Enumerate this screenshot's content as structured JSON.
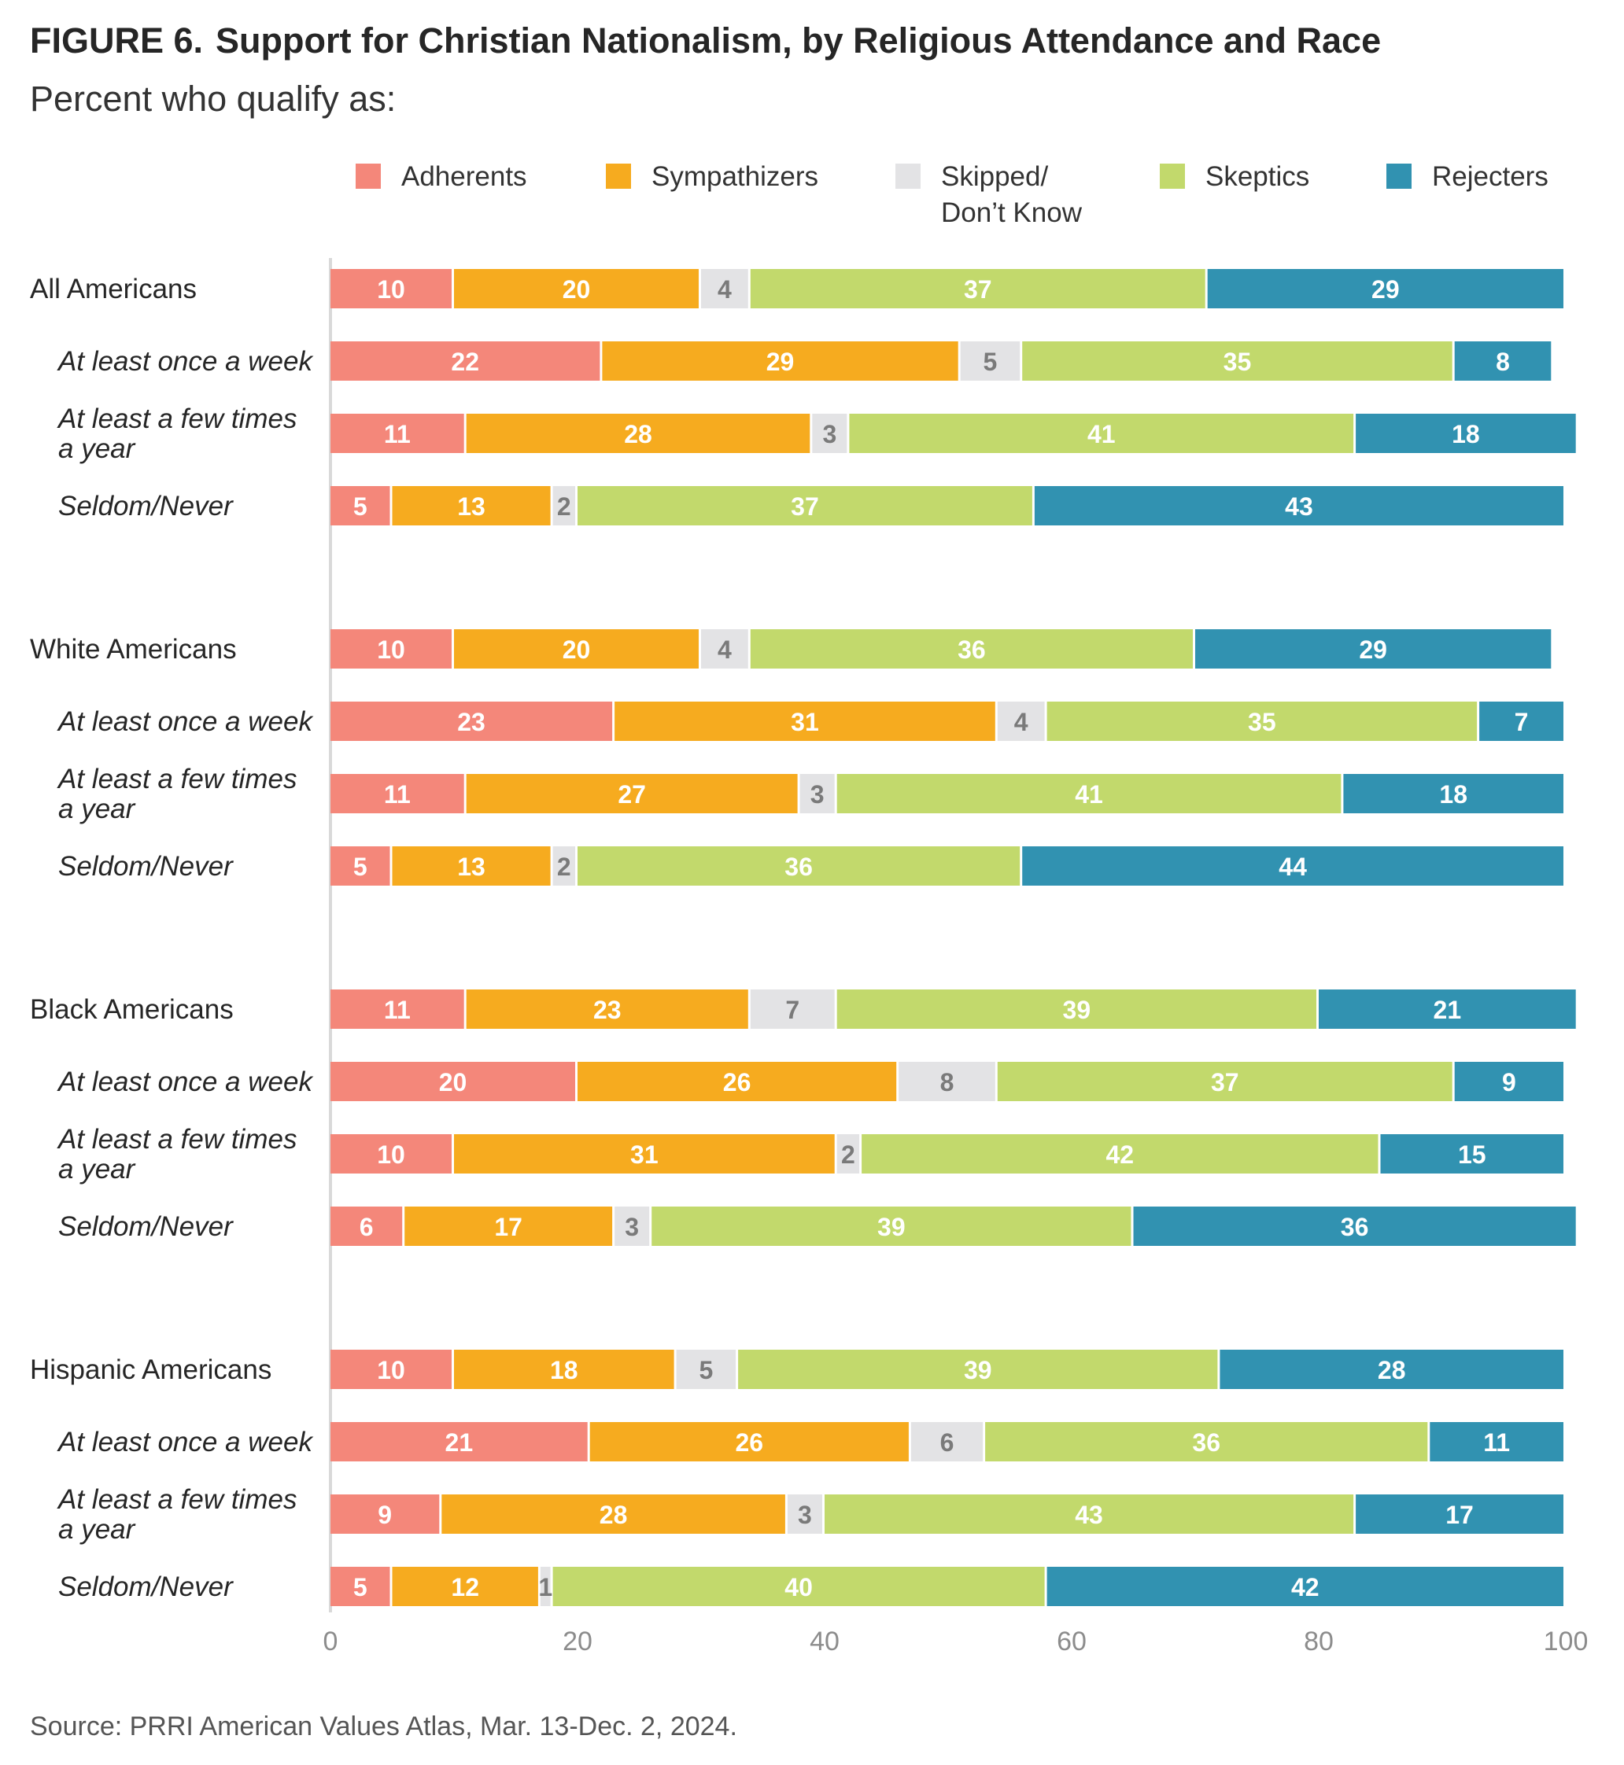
{
  "figure_label": "FIGURE 6.",
  "title": "Support for Christian Nationalism, by Religious Attendance and Race",
  "subtitle": "Percent who qualify as:",
  "source": "Source: PRRI American Values Atlas, Mar. 13-Dec. 2, 2024.",
  "colors": {
    "Adherents": "#f4877a",
    "Sympathizers": "#f6ab1f",
    "Skipped": "#e3e3e5",
    "Skeptics": "#c2d96c",
    "Rejecters": "#3192b1",
    "label_light": "#ffffff",
    "label_dark": "#7a7a7a",
    "axis": "#d9d9d9",
    "tick": "#8c8c8c"
  },
  "chart_data": {
    "type": "bar",
    "orientation": "horizontal",
    "stacked": true,
    "xlim": [
      0,
      100
    ],
    "x_ticks": [
      0,
      20,
      40,
      60,
      80,
      100
    ],
    "legend": {
      "placement": "top",
      "entries": [
        {
          "key": "Adherents",
          "lines": [
            "Adherents"
          ]
        },
        {
          "key": "Sympathizers",
          "lines": [
            "Sympathizers"
          ]
        },
        {
          "key": "Skipped",
          "lines": [
            "Skipped/",
            "Don’t Know"
          ]
        },
        {
          "key": "Skeptics",
          "lines": [
            "Skeptics"
          ]
        },
        {
          "key": "Rejecters",
          "lines": [
            "Rejecters"
          ]
        }
      ]
    },
    "series_names": [
      "Adherents",
      "Sympathizers",
      "Skipped/Don’t Know",
      "Skeptics",
      "Rejecters"
    ],
    "groups": [
      {
        "name": "All Americans",
        "rows": [
          {
            "label": "All Americans",
            "sub": false,
            "values": [
              10,
              20,
              4,
              37,
              29
            ]
          },
          {
            "label": "At least once a week",
            "sub": true,
            "values": [
              22,
              29,
              5,
              35,
              8
            ]
          },
          {
            "label": "At least a few times a year",
            "sub": true,
            "lines": [
              "At least a few times",
              "a year"
            ],
            "values": [
              11,
              28,
              3,
              41,
              18
            ]
          },
          {
            "label": "Seldom/Never",
            "sub": true,
            "values": [
              5,
              13,
              2,
              37,
              43
            ]
          }
        ]
      },
      {
        "name": "White Americans",
        "rows": [
          {
            "label": "White Americans",
            "sub": false,
            "values": [
              10,
              20,
              4,
              36,
              29
            ]
          },
          {
            "label": "At least once a week",
            "sub": true,
            "values": [
              23,
              31,
              4,
              35,
              7
            ]
          },
          {
            "label": "At least a few times a year",
            "sub": true,
            "lines": [
              "At least a few times",
              "a year"
            ],
            "values": [
              11,
              27,
              3,
              41,
              18
            ]
          },
          {
            "label": "Seldom/Never",
            "sub": true,
            "values": [
              5,
              13,
              2,
              36,
              44
            ]
          }
        ]
      },
      {
        "name": "Black Americans",
        "rows": [
          {
            "label": "Black Americans",
            "sub": false,
            "values": [
              11,
              23,
              7,
              39,
              21
            ]
          },
          {
            "label": "At least once a week",
            "sub": true,
            "values": [
              20,
              26,
              8,
              37,
              9
            ]
          },
          {
            "label": "At least a few times a year",
            "sub": true,
            "lines": [
              "At least a few times",
              "a year"
            ],
            "values": [
              10,
              31,
              2,
              42,
              15
            ]
          },
          {
            "label": "Seldom/Never",
            "sub": true,
            "values": [
              6,
              17,
              3,
              39,
              36
            ]
          }
        ]
      },
      {
        "name": "Hispanic Americans",
        "rows": [
          {
            "label": "Hispanic Americans",
            "sub": false,
            "values": [
              10,
              18,
              5,
              39,
              28
            ]
          },
          {
            "label": "At least once a week",
            "sub": true,
            "values": [
              21,
              26,
              6,
              36,
              11
            ]
          },
          {
            "label": "At least a few times a year",
            "sub": true,
            "lines": [
              "At least a few times",
              "a year"
            ],
            "values": [
              9,
              28,
              3,
              43,
              17
            ]
          },
          {
            "label": "Seldom/Never",
            "sub": true,
            "values": [
              5,
              12,
              1,
              40,
              42
            ]
          }
        ]
      }
    ]
  }
}
